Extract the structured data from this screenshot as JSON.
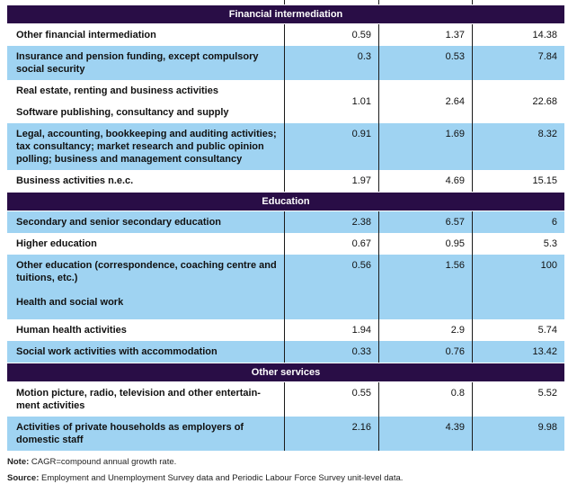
{
  "colors": {
    "section_band": "#290d46",
    "row_highlight": "#9fd3f2",
    "divider": "#1a1a1a",
    "text": "#111111"
  },
  "table": {
    "sections": [
      {
        "header": "Financial intermediation",
        "rows": [
          {
            "label": "Other financial intermediation",
            "values": [
              "0.59",
              "1.37",
              "14.38"
            ],
            "shade": "white"
          },
          {
            "label": "Insurance and pension funding, except compulsory social security",
            "values": [
              "0.3",
              "0.53",
              "7.84"
            ],
            "shade": "blue"
          },
          {
            "label": "Real estate, renting and business activities",
            "label2": "Software publishing, consultancy and supply",
            "values": [
              "1.01",
              "2.64",
              "22.68"
            ],
            "shade": "white",
            "valign": "middle"
          },
          {
            "label": "Legal, accounting, bookkeeping and auditing activities; tax consultancy; market research and public opinion polling; business and management consultancy",
            "values": [
              "0.91",
              "1.69",
              "8.32"
            ],
            "shade": "blue"
          },
          {
            "label": "Business activities n.e.c.",
            "values": [
              "1.97",
              "4.69",
              "15.15"
            ],
            "shade": "white"
          }
        ]
      },
      {
        "header": "Education",
        "rows": [
          {
            "label": "Secondary and senior secondary education",
            "values": [
              "2.38",
              "6.57",
              "6"
            ],
            "shade": "blue"
          },
          {
            "label": "Higher education",
            "values": [
              "0.67",
              "0.95",
              "5.3"
            ],
            "shade": "white"
          },
          {
            "label": "Other education (correspondence, coaching centre and tuitions, etc.)",
            "values": [
              "0.56",
              "1.56",
              "100"
            ],
            "shade": "blue"
          },
          {
            "label": "Health and social work",
            "values": [
              "",
              "",
              ""
            ],
            "shade": "blue",
            "tall": true
          },
          {
            "label": "Human health activities",
            "values": [
              "1.94",
              "2.9",
              "5.74"
            ],
            "shade": "white"
          },
          {
            "label": "Social work activities with accommodation",
            "values": [
              "0.33",
              "0.76",
              "13.42"
            ],
            "shade": "blue"
          }
        ]
      },
      {
        "header": "Other services",
        "rows": [
          {
            "label": "Motion picture, radio, television and other entertain-\nment activities",
            "values": [
              "0.55",
              "0.8",
              "5.52"
            ],
            "shade": "white"
          },
          {
            "label": "Activities of private households as employers of domestic staff",
            "values": [
              "2.16",
              "4.39",
              "9.98"
            ],
            "shade": "blue"
          }
        ]
      }
    ]
  },
  "footer": {
    "note_label": "Note:",
    "note_text": "CAGR=compound annual growth rate.",
    "source_label": "Source:",
    "source_text": "Employment and Unemployment Survey data and Periodic Labour Force Survey unit-level data."
  }
}
